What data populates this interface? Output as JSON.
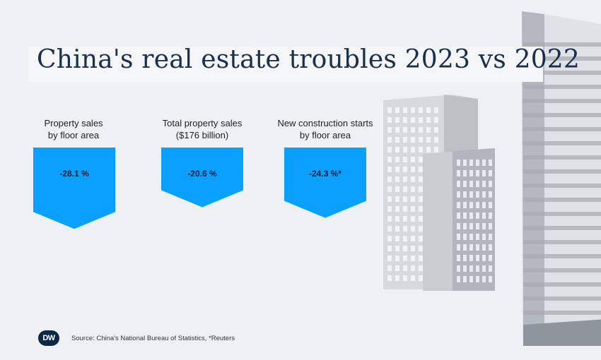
{
  "title": "China's real estate troubles 2023 vs 2022",
  "chart_data": {
    "type": "bar",
    "title": "China's real estate troubles 2023 vs 2022",
    "categories": [
      [
        "Property sales",
        "by floor area"
      ],
      [
        "Total property sales",
        "($176 billion)"
      ],
      [
        "New construction starts",
        "by floor area"
      ]
    ],
    "values": [
      -28.1,
      -20.6,
      -24.3
    ],
    "value_labels": [
      "-28.1 %",
      "-20.6 %",
      "-24.3 %*"
    ],
    "unit": "%",
    "ylim": [
      -30,
      0
    ],
    "color": "#0aa0ff"
  },
  "footer": {
    "logo": "DW",
    "source": "Source: China's National Bureau of Statistics, *Reuters"
  }
}
